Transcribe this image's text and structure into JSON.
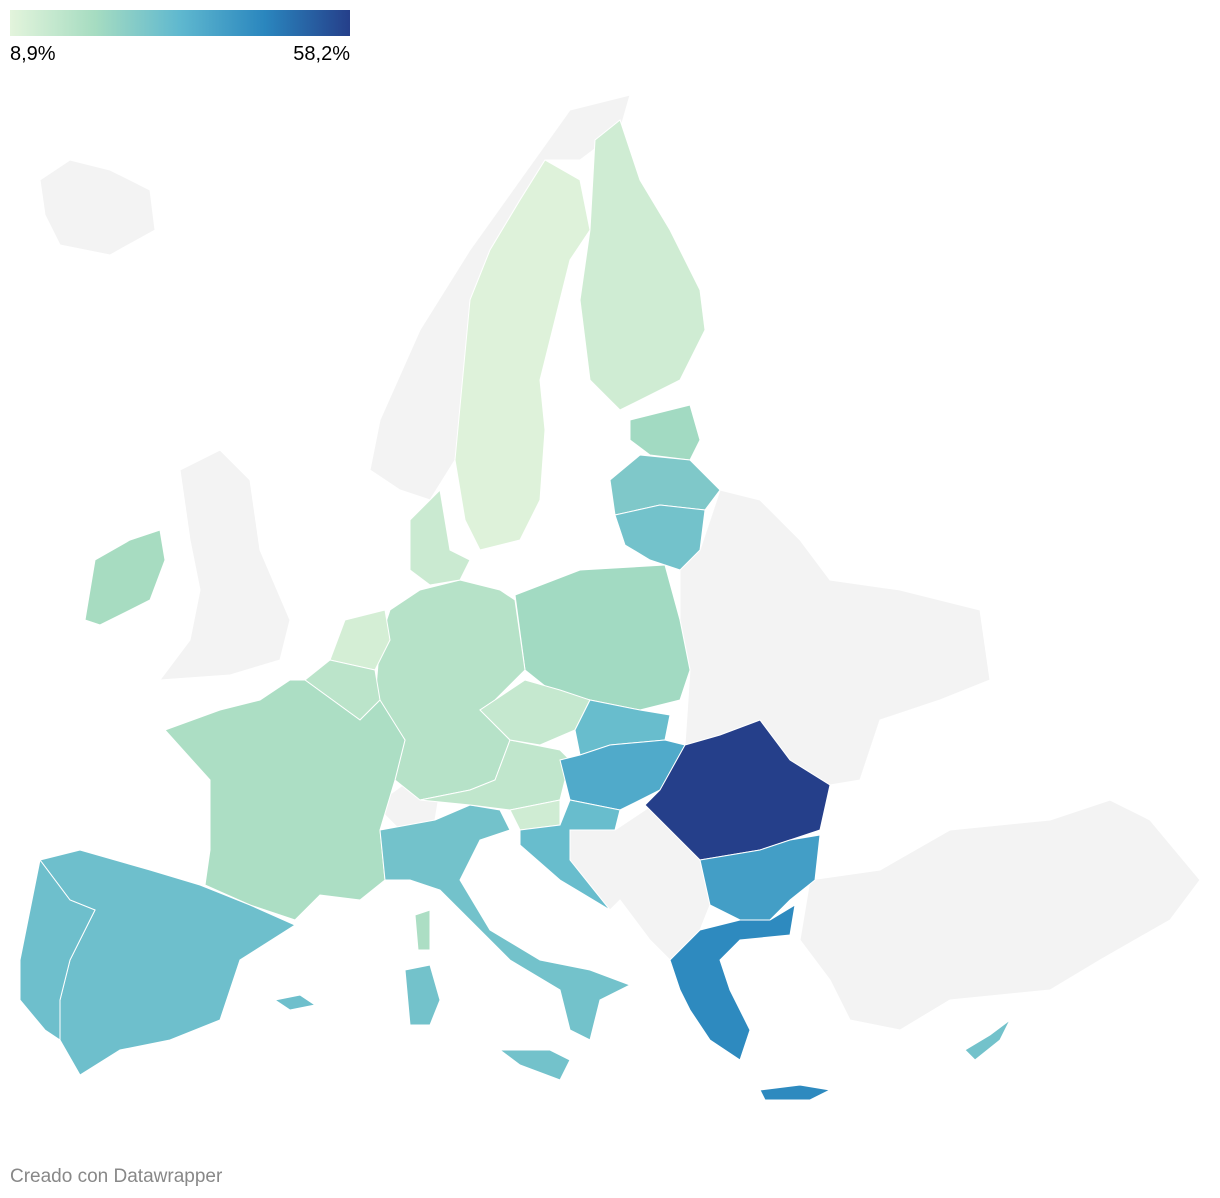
{
  "legend": {
    "colors": [
      "#e3f4dc",
      "#a6dcc1",
      "#5fb8cf",
      "#2a86be",
      "#253f8a"
    ],
    "min": {
      "value": 8.9,
      "label": "8,9%"
    },
    "max": {
      "value": 58.2,
      "label": "58,2%"
    }
  },
  "values": [
    10,
    13,
    22,
    28,
    30,
    22,
    18,
    14,
    12,
    17,
    10,
    20,
    21,
    31,
    31,
    30,
    16,
    15,
    32,
    37,
    13,
    32,
    58.2,
    40,
    45,
    30
  ],
  "footer": "Creado con Datawrapper"
}
